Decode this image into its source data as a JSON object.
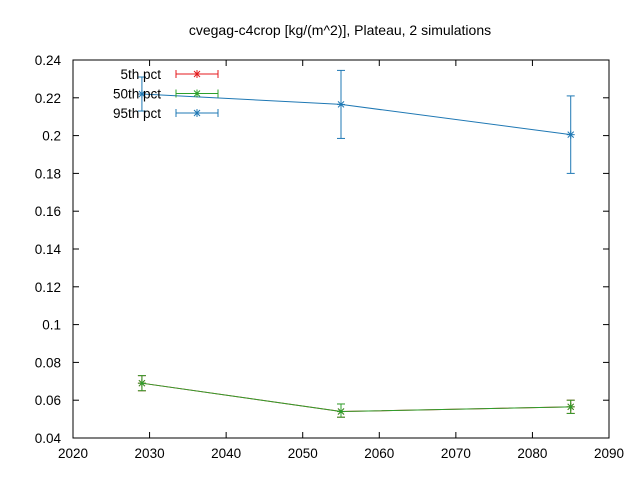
{
  "chart_data": {
    "type": "line",
    "title": "cvegag-c4crop [kg/(m^2)], Plateau, 2 simulations",
    "xlabel": "",
    "ylabel": "",
    "xlim": [
      2020,
      2090
    ],
    "ylim": [
      0.04,
      0.24
    ],
    "x_ticks": [
      2020,
      2030,
      2040,
      2050,
      2060,
      2070,
      2080,
      2090
    ],
    "y_ticks": [
      0.04,
      0.06,
      0.08,
      0.1,
      0.12,
      0.14,
      0.16,
      0.18,
      0.2,
      0.22,
      0.24
    ],
    "y_tick_labels": [
      "0.04",
      "0.06",
      "0.08",
      "0.1",
      "0.12",
      "0.14",
      "0.16",
      "0.18",
      "0.2",
      "0.22",
      "0.24"
    ],
    "grid": false,
    "legend_position": "top-left",
    "series": [
      {
        "name": "5th pct",
        "color": "#e41a1c",
        "x": [
          2029,
          2055,
          2085
        ],
        "values": [
          0.069,
          0.054,
          0.0565
        ],
        "err_low": [
          0.065,
          0.051,
          0.053
        ],
        "err_high": [
          0.073,
          0.058,
          0.06
        ]
      },
      {
        "name": "50th pct",
        "color": "#2ca02c",
        "x": [
          2029,
          2055,
          2085
        ],
        "values": [
          0.069,
          0.054,
          0.0565
        ],
        "err_low": [
          0.065,
          0.051,
          0.053
        ],
        "err_high": [
          0.073,
          0.058,
          0.06
        ]
      },
      {
        "name": "95th pct",
        "color": "#1f78b4",
        "x": [
          2029,
          2055,
          2085
        ],
        "values": [
          0.222,
          0.2165,
          0.2005
        ],
        "err_low": [
          0.213,
          0.1985,
          0.18
        ],
        "err_high": [
          0.231,
          0.2345,
          0.221
        ]
      }
    ]
  }
}
